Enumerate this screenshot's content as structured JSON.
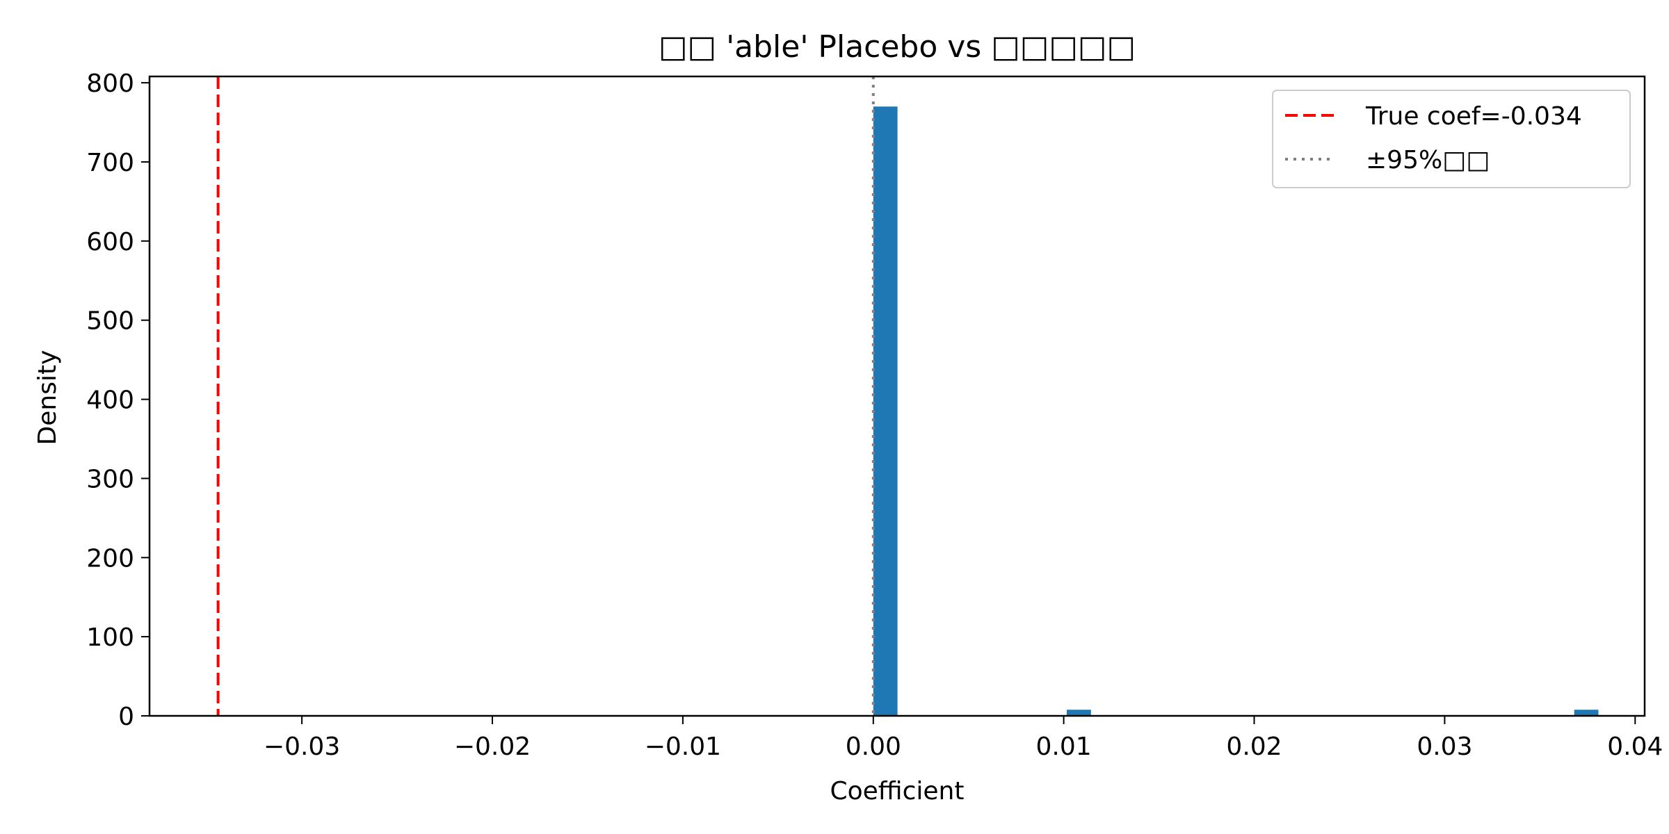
{
  "chart_data": {
    "type": "bar",
    "title": "□□ 'able' Placebo vs □□□□□",
    "xlabel": "Coefficient",
    "ylabel": "Density",
    "xlim": [
      -0.038,
      0.0405
    ],
    "ylim": [
      0,
      808
    ],
    "xticks": [
      -0.03,
      -0.02,
      -0.01,
      0.0,
      0.01,
      0.02,
      0.03,
      0.04
    ],
    "xtick_labels": [
      "−0.03",
      "−0.02",
      "−0.01",
      "0.00",
      "0.01",
      "0.02",
      "0.03",
      "0.04"
    ],
    "yticks": [
      0,
      100,
      200,
      300,
      400,
      500,
      600,
      700,
      800
    ],
    "ytick_labels": [
      "0",
      "100",
      "200",
      "300",
      "400",
      "500",
      "600",
      "700",
      "800"
    ],
    "bars": [
      {
        "x0": 0.0,
        "x1": 0.00127,
        "value": 770
      },
      {
        "x0": 0.01016,
        "x1": 0.01143,
        "value": 7.7
      },
      {
        "x0": 0.0368,
        "x1": 0.03807,
        "value": 7.7
      }
    ],
    "bar_color": "#1f77b4",
    "reference_lines": [
      {
        "x": -0.0344,
        "style": "dashed",
        "color": "#ff0000",
        "label": "True coef=-0.034"
      },
      {
        "x": 0.0,
        "style": "dotted",
        "color": "#808080",
        "label": "±95%□□"
      }
    ],
    "legend": {
      "position": "top-right",
      "entries": [
        "True coef=-0.034",
        "±95%□□"
      ]
    },
    "grid": false
  }
}
